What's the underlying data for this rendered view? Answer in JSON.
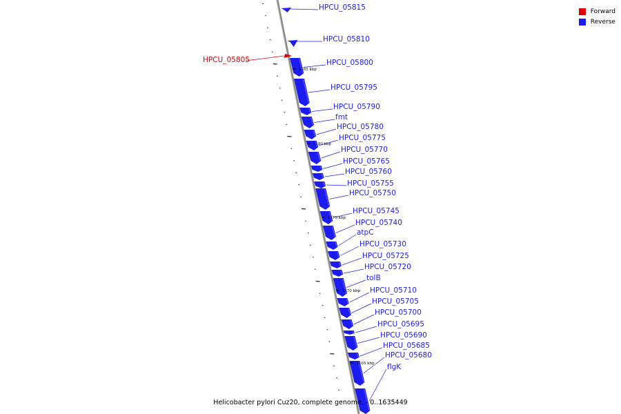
{
  "caption": "Helicobacter pylori Cuz20, complete genome. - 0..1635449",
  "legend": {
    "forward_label": "Forward",
    "reverse_label": "Reverse",
    "forward_color": "#e00000",
    "reverse_color": "#1c1cf2"
  },
  "colors": {
    "backbone": "#8a8a8a",
    "forward": "#e00000",
    "reverse": "#1c1cf2",
    "leader": "#1c1cf2"
  },
  "scale_kbp": [
    "1185 kbp",
    "1180 kbp",
    "1175 kbp",
    "1170 kbp",
    "1165 kbp"
  ],
  "genes": [
    {
      "name": "HPCU_05815",
      "strand": "reverse"
    },
    {
      "name": "HPCU_05810",
      "strand": "reverse"
    },
    {
      "name": "HPCU_05805",
      "strand": "forward"
    },
    {
      "name": "HPCU_05800",
      "strand": "reverse"
    },
    {
      "name": "HPCU_05795",
      "strand": "reverse"
    },
    {
      "name": "HPCU_05790",
      "strand": "reverse"
    },
    {
      "name": "fmt",
      "strand": "reverse"
    },
    {
      "name": "HPCU_05780",
      "strand": "reverse"
    },
    {
      "name": "HPCU_05775",
      "strand": "reverse"
    },
    {
      "name": "HPCU_05770",
      "strand": "reverse"
    },
    {
      "name": "HPCU_05765",
      "strand": "reverse"
    },
    {
      "name": "HPCU_05760",
      "strand": "reverse"
    },
    {
      "name": "HPCU_05755",
      "strand": "reverse"
    },
    {
      "name": "HPCU_05750",
      "strand": "reverse"
    },
    {
      "name": "HPCU_05745",
      "strand": "reverse"
    },
    {
      "name": "HPCU_05740",
      "strand": "reverse"
    },
    {
      "name": "atpC",
      "strand": "reverse"
    },
    {
      "name": "HPCU_05730",
      "strand": "reverse"
    },
    {
      "name": "HPCU_05725",
      "strand": "reverse"
    },
    {
      "name": "HPCU_05720",
      "strand": "reverse"
    },
    {
      "name": "tolB",
      "strand": "reverse"
    },
    {
      "name": "HPCU_05710",
      "strand": "reverse"
    },
    {
      "name": "HPCU_05705",
      "strand": "reverse"
    },
    {
      "name": "HPCU_05700",
      "strand": "reverse"
    },
    {
      "name": "HPCU_05695",
      "strand": "reverse"
    },
    {
      "name": "HPCU_05690",
      "strand": "reverse"
    },
    {
      "name": "HPCU_05685",
      "strand": "reverse"
    },
    {
      "name": "HPCU_05680",
      "strand": "reverse"
    },
    {
      "name": "flgK",
      "strand": "reverse"
    }
  ]
}
